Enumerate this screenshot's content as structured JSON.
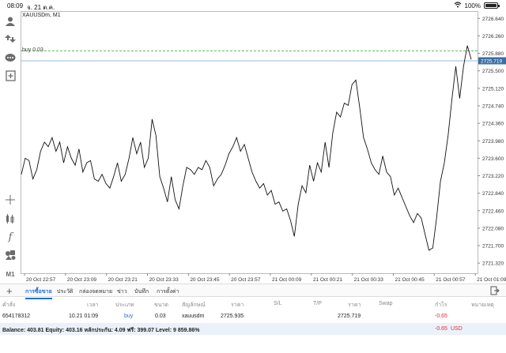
{
  "status_bar": {
    "time": "08:09",
    "date": "จ. 21 ต.ค.",
    "battery": "100%"
  },
  "chart": {
    "symbol_label": "XAUUSDm, M1",
    "order_label": "buy 0.03",
    "current_price_tag": "2725.719",
    "colors": {
      "price_line": "#111111",
      "order_line": "#5cb85c",
      "bid_line": "#9ab8d8",
      "price_tag_bg": "#3a6ea5"
    }
  },
  "chart_data": {
    "type": "line",
    "title": "",
    "xlabel": "",
    "ylabel": "",
    "y_ticks": [
      "2726.640",
      "2726.260",
      "2725.880",
      "2725.500",
      "2725.120",
      "2724.740",
      "2724.360",
      "2723.980",
      "2723.600",
      "2723.220",
      "2722.840",
      "2722.460",
      "2722.080",
      "2721.700",
      "2721.320"
    ],
    "x_ticks": [
      "20 Oct 22:57",
      "20 Oct 23:09",
      "20 Oct 23:21",
      "20 Oct 23:33",
      "20 Oct 23:45",
      "20 Oct 23:57",
      "21 Oct 00:09",
      "21 Oct 00:21",
      "21 Oct 00:33",
      "21 Oct 00:45",
      "21 Oct 00:57",
      "21 Oct 01:09"
    ],
    "ylim": [
      2721.1,
      2726.8
    ],
    "order_price": 2725.935,
    "current_price": 2725.719,
    "series": [
      {
        "values": [
          2723.25,
          2723.6,
          2723.55,
          2723.15,
          2723.35,
          2723.75,
          2723.95,
          2723.85,
          2724.05,
          2723.75,
          2723.95,
          2723.5,
          2723.85,
          2723.6,
          2723.45,
          2723.8,
          2723.3,
          2723.5,
          2723.55,
          2723.15,
          2723.1,
          2723.25,
          2723.05,
          2722.95,
          2723.2,
          2723.5,
          2723.1,
          2723.25,
          2723.6,
          2724.05,
          2723.7,
          2723.95,
          2723.4,
          2723.6,
          2724.45,
          2724.1,
          2723.2,
          2722.95,
          2722.65,
          2723.2,
          2722.7,
          2722.5,
          2723.0,
          2723.4,
          2723.35,
          2723.25,
          2723.4,
          2723.35,
          2723.55,
          2723.4,
          2723.0,
          2723.15,
          2723.25,
          2723.45,
          2723.7,
          2723.85,
          2724.05,
          2723.75,
          2723.9,
          2723.6,
          2723.3,
          2723.1,
          2722.95,
          2723.05,
          2722.8,
          2722.9,
          2722.6,
          2722.65,
          2722.45,
          2722.5,
          2722.25,
          2721.9,
          2722.6,
          2723.0,
          2722.85,
          2723.45,
          2723.1,
          2723.5,
          2723.3,
          2723.95,
          2723.4,
          2724.15,
          2724.6,
          2724.5,
          2724.8,
          2724.75,
          2725.2,
          2725.3,
          2724.7,
          2724.05,
          2723.8,
          2723.5,
          2723.35,
          2723.25,
          2723.65,
          2723.3,
          2723.2,
          2722.8,
          2722.95,
          2722.75,
          2722.55,
          2722.35,
          2722.2,
          2722.4,
          2722.3,
          2721.95,
          2721.6,
          2721.65,
          2722.3,
          2723.1,
          2723.5,
          2724.1,
          2724.9,
          2725.6,
          2724.9,
          2725.6,
          2726.05,
          2725.75
        ]
      }
    ]
  },
  "toolbar": {
    "tools": [
      "user-icon",
      "trade-icon",
      "chat-icon",
      "new-order-icon",
      "crosshair-icon",
      "indicators-icon",
      "function-icon",
      "objects-icon",
      "timeframe-m1"
    ],
    "timeframe": "M1"
  },
  "tabs": {
    "items": [
      "การซื้อขาย",
      "ประวัติ",
      "กล่องจดหมาย",
      "ข่าว",
      "บันทึก",
      "การตั้งค่า"
    ],
    "active": 0
  },
  "table": {
    "headers": [
      "คำสั่ง",
      "เวลา",
      "ประเภท",
      "ขนาด",
      "สัญลักษณ์",
      "ราคา",
      "S/L",
      "T/P",
      "ราคา",
      "Swap",
      "กำไร",
      "หมายเหตุ"
    ],
    "row": {
      "order": "654178312",
      "time": "10.21 01:09",
      "type": "buy",
      "volume": "0.03",
      "symbol": "xauusdm",
      "price": "2725.935",
      "sl": "",
      "tp": "",
      "current_price": "2725.719",
      "swap": "",
      "profit": "-0.65"
    }
  },
  "balance": {
    "text": "Balance: 403.81  Equity: 403.16  หลักประกัน: 4.09  ฟรี: 399.07  Level: 9 859.86%",
    "profit": "-0.65",
    "currency": "USD"
  }
}
